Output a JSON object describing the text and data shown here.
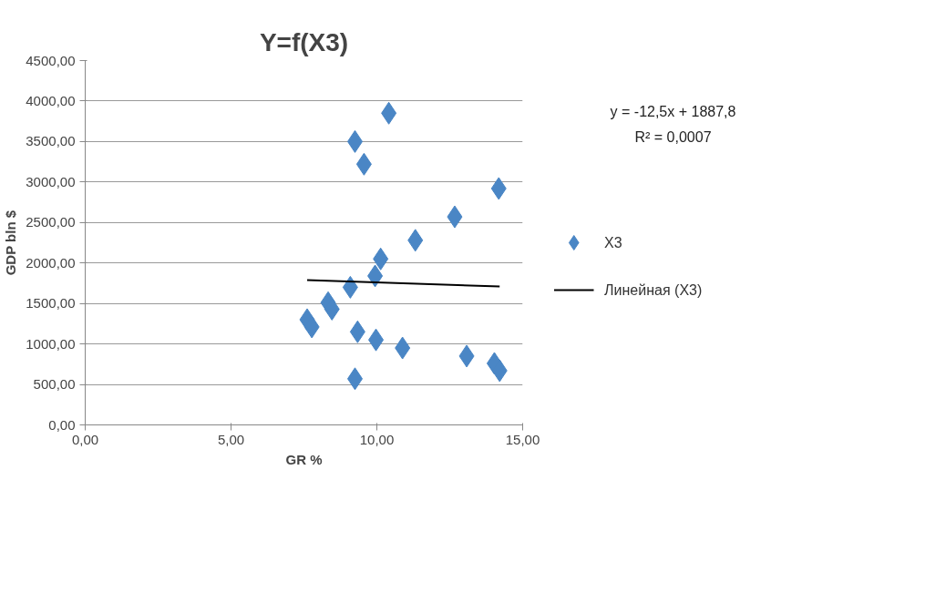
{
  "chart_data": {
    "type": "scatter",
    "title": "Y=f(X3)",
    "xlabel": "GR %",
    "ylabel": "GDP bln $",
    "annotations": [
      "y = -12,5x + 1887,8",
      "R² = 0,0007"
    ],
    "marker": "diamond",
    "legend": "right",
    "grid": "y",
    "xlim": [
      0,
      15
    ],
    "ylim": [
      0,
      4500
    ],
    "xticks": [
      {
        "value": 0,
        "label": "0,00"
      },
      {
        "value": 5,
        "label": "5,00"
      },
      {
        "value": 10,
        "label": "10,00"
      },
      {
        "value": 15,
        "label": "15,00"
      }
    ],
    "yticks": [
      {
        "value": 0,
        "label": "0,00"
      },
      {
        "value": 500,
        "label": "500,00"
      },
      {
        "value": 1000,
        "label": "1000,00"
      },
      {
        "value": 1500,
        "label": "1500,00"
      },
      {
        "value": 2000,
        "label": "2000,00"
      },
      {
        "value": 2500,
        "label": "2500,00"
      },
      {
        "value": 3000,
        "label": "3000,00"
      },
      {
        "value": 3500,
        "label": "3500,00"
      },
      {
        "value": 4000,
        "label": "4000,00"
      },
      {
        "value": 4500,
        "label": "4500,00"
      }
    ],
    "series": [
      {
        "name": "X3",
        "color": "#4a86c5",
        "x": [
          10.41,
          9.25,
          9.56,
          14.18,
          12.67,
          11.32,
          10.13,
          9.94,
          9.09,
          8.33,
          8.46,
          7.61,
          7.77,
          9.34,
          9.97,
          10.88,
          13.08,
          14.03,
          14.21,
          9.25
        ],
        "values": [
          3850,
          3500,
          3220,
          2920,
          2570,
          2280,
          2050,
          1840,
          1700,
          1510,
          1430,
          1300,
          1210,
          1150,
          1050,
          950,
          850,
          760,
          670,
          570
        ]
      },
      {
        "name": "Линейная (X3)",
        "type": "line",
        "color": "#000000",
        "line_style": "solid",
        "marker": "none",
        "x": [
          7.61,
          14.21
        ],
        "values": [
          1790,
          1710
        ]
      }
    ]
  }
}
